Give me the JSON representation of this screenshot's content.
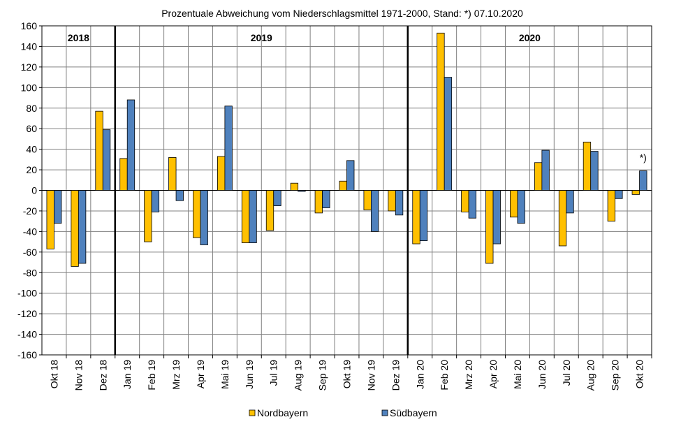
{
  "chart_data": {
    "type": "bar",
    "title": "Prozentuale  Abweichung  vom Niederschlagsmittel  1971-2000,  Stand:  *)  07.10.2020",
    "xlabel": "",
    "ylabel": "",
    "ylim": [
      -160,
      160
    ],
    "ytick_step": 20,
    "grid": true,
    "legend_position": "bottom",
    "categories": [
      "Okt 18",
      "Nov 18",
      "Dez 18",
      "Jan 19",
      "Feb 19",
      "Mrz 19",
      "Apr 19",
      "Mai 19",
      "Jun 19",
      "Jul 19",
      "Aug 19",
      "Sep 19",
      "Okt 19",
      "Nov 19",
      "Dez 19",
      "Jan 20",
      "Feb 20",
      "Mrz 20",
      "Apr 20",
      "Mai 20",
      "Jun 20",
      "Jul 20",
      "Aug 20",
      "Sep 20",
      "Okt 20"
    ],
    "series": [
      {
        "name": "Nordbayern",
        "color": "#FFC000",
        "values": [
          -57,
          -74,
          77,
          31,
          -50,
          32,
          -46,
          33,
          -51,
          -39,
          7,
          -22,
          9,
          -19,
          -20,
          -52,
          153,
          -21,
          -71,
          -26,
          27,
          -54,
          47,
          -30,
          -4
        ]
      },
      {
        "name": "Südbayern",
        "color": "#4F81BD",
        "values": [
          -32,
          -71,
          59,
          88,
          -21,
          -10,
          -53,
          82,
          -51,
          -15,
          -1,
          -17,
          29,
          -40,
          -24,
          -49,
          110,
          -27,
          -52,
          -32,
          39,
          -22,
          38,
          -8,
          19
        ]
      }
    ],
    "year_groups": [
      {
        "label": "2018",
        "start_index": 0
      },
      {
        "label": "2019",
        "start_index": 3
      },
      {
        "label": "2020",
        "start_index": 15
      }
    ],
    "annotations": [
      {
        "text": "*)",
        "category": "Okt 20",
        "series": "Südbayern"
      }
    ]
  }
}
